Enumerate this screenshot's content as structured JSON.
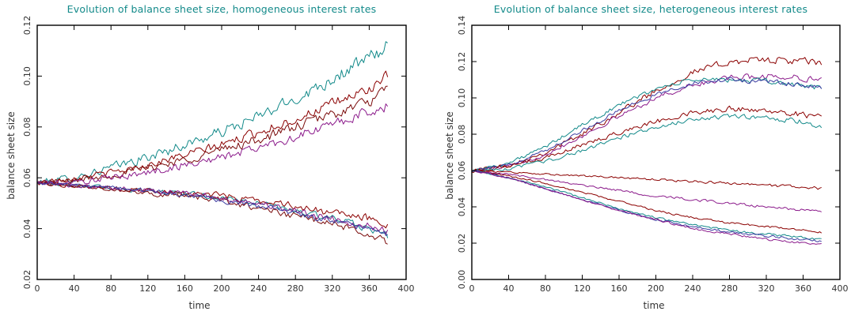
{
  "chart_data": [
    {
      "type": "line",
      "title": "Evolution of balance sheet size, homogeneous interest rates",
      "xlabel": "time",
      "ylabel": "balance sheet size",
      "xlim": [
        0,
        400
      ],
      "ylim": [
        0.02,
        0.12
      ],
      "xticks": [
        0,
        40,
        80,
        120,
        160,
        200,
        240,
        280,
        320,
        360,
        400
      ],
      "yticks": [
        0.02,
        0.04,
        0.06,
        0.08,
        0.1,
        0.12
      ],
      "xtick_labels": [
        "0",
        "40",
        "80",
        "120",
        "160",
        "200",
        "240",
        "280",
        "320",
        "360",
        "400"
      ],
      "ytick_labels": [
        "0.02",
        "0.04",
        "0.06",
        "0.08",
        "0.10",
        "0.12"
      ],
      "grid": false,
      "legend": "none",
      "series": [
        {
          "color": "#138a8a",
          "noise": 0.004,
          "x": [
            0,
            40,
            80,
            120,
            160,
            200,
            240,
            280,
            320,
            360,
            380
          ],
          "y": [
            0.058,
            0.06,
            0.064,
            0.068,
            0.073,
            0.078,
            0.084,
            0.091,
            0.099,
            0.107,
            0.112
          ]
        },
        {
          "color": "#8b0000",
          "noise": 0.003,
          "x": [
            0,
            40,
            80,
            120,
            160,
            200,
            240,
            280,
            320,
            360,
            380
          ],
          "y": [
            0.058,
            0.06,
            0.062,
            0.065,
            0.069,
            0.073,
            0.078,
            0.083,
            0.089,
            0.095,
            0.1
          ]
        },
        {
          "color": "#7a0a0a",
          "noise": 0.0032,
          "x": [
            0,
            40,
            80,
            120,
            160,
            200,
            240,
            280,
            320,
            360,
            380
          ],
          "y": [
            0.058,
            0.059,
            0.061,
            0.064,
            0.067,
            0.071,
            0.075,
            0.08,
            0.085,
            0.09,
            0.094
          ]
        },
        {
          "color": "#8b1a8b",
          "noise": 0.003,
          "x": [
            0,
            40,
            80,
            120,
            160,
            200,
            240,
            280,
            320,
            360,
            380
          ],
          "y": [
            0.058,
            0.058,
            0.06,
            0.062,
            0.065,
            0.068,
            0.072,
            0.076,
            0.081,
            0.086,
            0.088
          ]
        },
        {
          "color": "#138a8a",
          "noise": 0.002,
          "x": [
            0,
            40,
            80,
            120,
            160,
            200,
            240,
            280,
            320,
            360,
            380
          ],
          "y": [
            0.058,
            0.057,
            0.056,
            0.055,
            0.054,
            0.052,
            0.05,
            0.047,
            0.044,
            0.04,
            0.037
          ]
        },
        {
          "color": "#8b0000",
          "noise": 0.0022,
          "x": [
            0,
            40,
            80,
            120,
            160,
            200,
            240,
            280,
            320,
            360,
            380
          ],
          "y": [
            0.058,
            0.057,
            0.056,
            0.055,
            0.054,
            0.053,
            0.051,
            0.049,
            0.046,
            0.044,
            0.042
          ]
        },
        {
          "color": "#7a0a0a",
          "noise": 0.0022,
          "x": [
            0,
            40,
            80,
            120,
            160,
            200,
            240,
            280,
            320,
            360,
            380
          ],
          "y": [
            0.058,
            0.057,
            0.056,
            0.054,
            0.053,
            0.051,
            0.048,
            0.045,
            0.042,
            0.038,
            0.035
          ]
        },
        {
          "color": "#8b1a8b",
          "noise": 0.002,
          "x": [
            0,
            40,
            80,
            120,
            160,
            200,
            240,
            280,
            320,
            360,
            380
          ],
          "y": [
            0.058,
            0.057,
            0.056,
            0.055,
            0.054,
            0.052,
            0.05,
            0.047,
            0.044,
            0.041,
            0.039
          ]
        },
        {
          "color": "#3a3aa0",
          "noise": 0.0018,
          "x": [
            0,
            40,
            80,
            120,
            160,
            200,
            240,
            280,
            320,
            360,
            380
          ],
          "y": [
            0.058,
            0.057,
            0.056,
            0.055,
            0.053,
            0.051,
            0.049,
            0.046,
            0.043,
            0.04,
            0.038
          ]
        }
      ]
    },
    {
      "type": "line",
      "title": "Evolution of balance sheet size, heterogeneous interest rates",
      "xlabel": "time",
      "ylabel": "balance sheet size",
      "xlim": [
        0,
        400
      ],
      "ylim": [
        0.0,
        0.14
      ],
      "xticks": [
        0,
        40,
        80,
        120,
        160,
        200,
        240,
        280,
        320,
        360,
        400
      ],
      "yticks": [
        0.0,
        0.02,
        0.04,
        0.06,
        0.08,
        0.1,
        0.12,
        0.14
      ],
      "xtick_labels": [
        "0",
        "40",
        "80",
        "120",
        "160",
        "200",
        "240",
        "280",
        "320",
        "360",
        "400"
      ],
      "ytick_labels": [
        "0.00",
        "0.02",
        "0.04",
        "0.06",
        "0.08",
        "0.10",
        "0.12",
        "0.14"
      ],
      "grid": false,
      "legend": "none",
      "series": [
        {
          "color": "#8b0000",
          "noise": 0.003,
          "x": [
            0,
            40,
            80,
            120,
            160,
            200,
            240,
            280,
            320,
            360,
            380
          ],
          "y": [
            0.06,
            0.063,
            0.07,
            0.08,
            0.092,
            0.104,
            0.114,
            0.12,
            0.121,
            0.12,
            0.119
          ]
        },
        {
          "color": "#8b1a8b",
          "noise": 0.0025,
          "x": [
            0,
            40,
            80,
            120,
            160,
            200,
            240,
            280,
            320,
            360,
            380
          ],
          "y": [
            0.06,
            0.062,
            0.069,
            0.079,
            0.09,
            0.1,
            0.107,
            0.111,
            0.112,
            0.111,
            0.11
          ]
        },
        {
          "color": "#138a8a",
          "noise": 0.0022,
          "x": [
            0,
            40,
            80,
            120,
            160,
            200,
            240,
            280,
            320,
            360,
            380
          ],
          "y": [
            0.06,
            0.064,
            0.073,
            0.085,
            0.096,
            0.105,
            0.11,
            0.11,
            0.109,
            0.107,
            0.105
          ]
        },
        {
          "color": "#3a3aa0",
          "noise": 0.002,
          "x": [
            0,
            40,
            80,
            120,
            160,
            200,
            240,
            280,
            320,
            360,
            380
          ],
          "y": [
            0.06,
            0.063,
            0.071,
            0.082,
            0.093,
            0.102,
            0.108,
            0.11,
            0.109,
            0.107,
            0.106
          ]
        },
        {
          "color": "#8b0000",
          "noise": 0.0024,
          "x": [
            0,
            40,
            80,
            120,
            160,
            200,
            240,
            280,
            320,
            360,
            380
          ],
          "y": [
            0.06,
            0.062,
            0.067,
            0.074,
            0.081,
            0.087,
            0.092,
            0.094,
            0.093,
            0.091,
            0.089
          ]
        },
        {
          "color": "#138a8a",
          "noise": 0.002,
          "x": [
            0,
            40,
            80,
            120,
            160,
            200,
            240,
            280,
            320,
            360,
            380
          ],
          "y": [
            0.06,
            0.061,
            0.065,
            0.071,
            0.078,
            0.084,
            0.088,
            0.09,
            0.089,
            0.087,
            0.084
          ]
        },
        {
          "color": "#8b0000",
          "noise": 0.0012,
          "x": [
            0,
            40,
            80,
            120,
            160,
            200,
            240,
            280,
            320,
            360,
            380
          ],
          "y": [
            0.06,
            0.059,
            0.058,
            0.057,
            0.056,
            0.055,
            0.054,
            0.053,
            0.052,
            0.051,
            0.05
          ]
        },
        {
          "color": "#8b1a8b",
          "noise": 0.0012,
          "x": [
            0,
            40,
            80,
            120,
            160,
            200,
            240,
            280,
            320,
            360,
            380
          ],
          "y": [
            0.06,
            0.058,
            0.055,
            0.052,
            0.049,
            0.046,
            0.044,
            0.042,
            0.04,
            0.038,
            0.037
          ]
        },
        {
          "color": "#8b0000",
          "noise": 0.001,
          "x": [
            0,
            40,
            80,
            120,
            160,
            200,
            240,
            280,
            320,
            360,
            380
          ],
          "y": [
            0.06,
            0.057,
            0.053,
            0.048,
            0.043,
            0.038,
            0.034,
            0.031,
            0.029,
            0.027,
            0.026
          ]
        },
        {
          "color": "#138a8a",
          "noise": 0.001,
          "x": [
            0,
            40,
            80,
            120,
            160,
            200,
            240,
            280,
            320,
            360,
            380
          ],
          "y": [
            0.06,
            0.056,
            0.051,
            0.045,
            0.039,
            0.034,
            0.03,
            0.027,
            0.025,
            0.023,
            0.022
          ]
        },
        {
          "color": "#3a3aa0",
          "noise": 0.001,
          "x": [
            0,
            40,
            80,
            120,
            160,
            200,
            240,
            280,
            320,
            360,
            380
          ],
          "y": [
            0.06,
            0.056,
            0.05,
            0.044,
            0.038,
            0.033,
            0.029,
            0.026,
            0.024,
            0.022,
            0.021
          ]
        },
        {
          "color": "#8b1a8b",
          "noise": 0.001,
          "x": [
            0,
            40,
            80,
            120,
            160,
            200,
            240,
            280,
            320,
            360,
            380
          ],
          "y": [
            0.06,
            0.056,
            0.05,
            0.044,
            0.038,
            0.033,
            0.028,
            0.025,
            0.022,
            0.02,
            0.019
          ]
        }
      ]
    }
  ]
}
